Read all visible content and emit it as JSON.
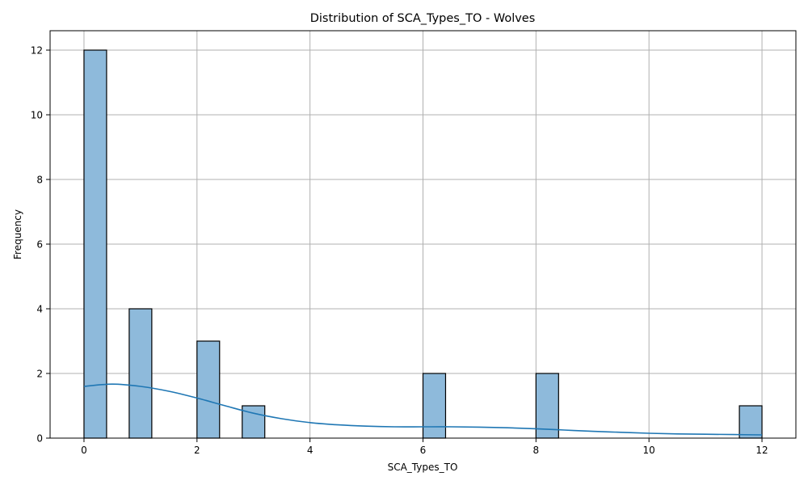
{
  "chart_data": {
    "type": "bar",
    "title": "Distribution of SCA_Types_TO - Wolves",
    "xlabel": "SCA_Types_TO",
    "ylabel": "Frequency",
    "xlim": [
      -0.6,
      12.6
    ],
    "ylim": [
      0,
      12.6
    ],
    "xticks": [
      0,
      2,
      4,
      6,
      8,
      10,
      12
    ],
    "yticks": [
      0,
      2,
      4,
      6,
      8,
      10,
      12
    ],
    "grid": true,
    "bin_width": 0.4,
    "bins": [
      {
        "x": 0,
        "count": 12
      },
      {
        "x": 0.4,
        "count": 0
      },
      {
        "x": 0.8,
        "count": 4
      },
      {
        "x": 2.0,
        "count": 3
      },
      {
        "x": 2.8,
        "count": 1
      },
      {
        "x": 6.0,
        "count": 2
      },
      {
        "x": 8.0,
        "count": 2
      },
      {
        "x": 11.6,
        "count": 1
      }
    ],
    "kde": {
      "x": [
        0,
        0.5,
        1,
        1.5,
        2,
        2.5,
        3,
        3.5,
        4,
        4.5,
        5,
        5.5,
        6,
        6.5,
        7,
        7.5,
        8,
        8.5,
        9,
        9.5,
        10,
        10.5,
        11,
        11.5,
        12
      ],
      "y": [
        1.6,
        1.67,
        1.6,
        1.45,
        1.24,
        1.0,
        0.77,
        0.6,
        0.48,
        0.41,
        0.37,
        0.35,
        0.35,
        0.35,
        0.34,
        0.32,
        0.29,
        0.25,
        0.21,
        0.18,
        0.15,
        0.13,
        0.12,
        0.11,
        0.1
      ]
    },
    "colors": {
      "bar_fill": "#8ebadb",
      "bar_edge": "#000000",
      "kde_line": "#1f77b4",
      "grid": "#b0b0b0"
    }
  }
}
